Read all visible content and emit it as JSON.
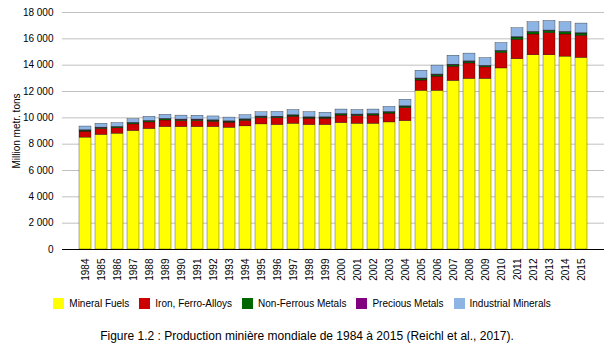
{
  "chart_data": {
    "type": "bar",
    "stacked": true,
    "caption": "Figure 1.2 : Production minière mondiale de 1984 à 2015 (Reichl et al., 2017).",
    "ylabel": "Million metr. tons",
    "categories": [
      "1984",
      "1985",
      "1986",
      "1987",
      "1988",
      "1989",
      "1990",
      "1991",
      "1992",
      "1993",
      "1994",
      "1995",
      "1996",
      "1997",
      "1998",
      "1999",
      "2000",
      "2001",
      "2002",
      "2003",
      "2004",
      "2005",
      "2006",
      "2007",
      "2008",
      "2009",
      "2010",
      "2011",
      "2012",
      "2013",
      "2014",
      "2015"
    ],
    "series": [
      {
        "name": "Mineral Fuels",
        "color": "#FFFF00",
        "values": [
          8500,
          8700,
          8800,
          9000,
          9150,
          9300,
          9300,
          9300,
          9300,
          9250,
          9350,
          9500,
          9450,
          9550,
          9450,
          9450,
          9600,
          9550,
          9550,
          9650,
          9750,
          12050,
          12050,
          12800,
          12950,
          12950,
          13750,
          14450,
          14750,
          14750,
          14650,
          14550
        ]
      },
      {
        "name": "Iron, Ferro-Alloys",
        "color": "#CC0000",
        "values": [
          450,
          450,
          400,
          500,
          500,
          500,
          450,
          450,
          400,
          380,
          420,
          480,
          520,
          530,
          480,
          480,
          570,
          580,
          620,
          670,
          980,
          780,
          1080,
          1080,
          1180,
          880,
          1180,
          1480,
          1580,
          1680,
          1680,
          1680
        ]
      },
      {
        "name": "Non-Ferrous Metals",
        "color": "#006600",
        "values": [
          80,
          80,
          80,
          80,
          90,
          90,
          90,
          90,
          85,
          80,
          90,
          90,
          90,
          90,
          85,
          85,
          90,
          90,
          90,
          90,
          120,
          130,
          130,
          130,
          130,
          90,
          130,
          170,
          170,
          170,
          170,
          170
        ]
      },
      {
        "name": "Precious Metals",
        "color": "#800080",
        "values": [
          30,
          30,
          30,
          30,
          30,
          30,
          30,
          30,
          30,
          30,
          30,
          30,
          30,
          30,
          30,
          30,
          30,
          30,
          30,
          30,
          30,
          30,
          30,
          30,
          30,
          30,
          30,
          30,
          30,
          30,
          30,
          30
        ]
      },
      {
        "name": "Industrial Minerals",
        "color": "#8DB4E2",
        "values": [
          280,
          290,
          290,
          280,
          310,
          310,
          300,
          290,
          290,
          280,
          310,
          320,
          360,
          390,
          390,
          340,
          340,
          340,
          340,
          390,
          490,
          590,
          680,
          680,
          590,
          590,
          590,
          680,
          730,
          730,
          730,
          730
        ]
      }
    ],
    "ylim": [
      0,
      18000
    ],
    "yticks": [
      0,
      {
        "value": 2000,
        "label": "2 000"
      },
      {
        "value": 4000,
        "label": "4 000"
      },
      {
        "value": 6000,
        "label": "6 000"
      },
      {
        "value": 8000,
        "label": "8 000"
      },
      {
        "value": 10000,
        "label": "10 000"
      },
      {
        "value": 12000,
        "label": "12 000"
      },
      {
        "value": 14000,
        "label": "14 000"
      },
      {
        "value": 16000,
        "label": "16 000"
      },
      {
        "value": 18000,
        "label": "18 000"
      }
    ],
    "grid": true,
    "legend": "bottom"
  }
}
